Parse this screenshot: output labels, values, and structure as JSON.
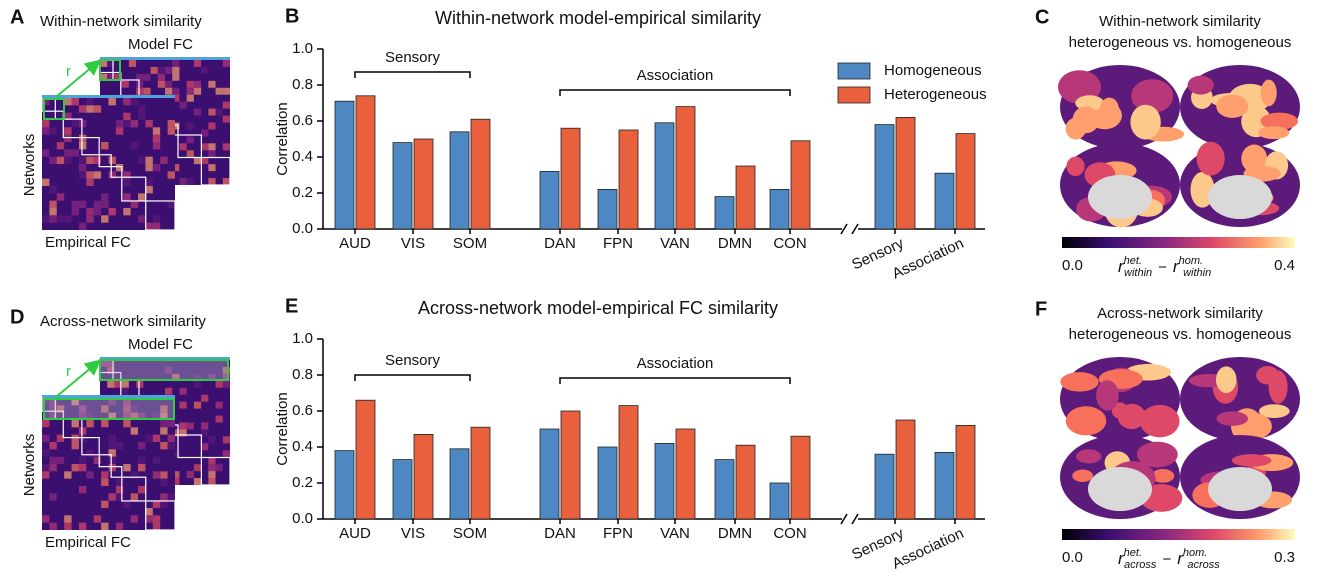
{
  "panels": {
    "A": {
      "letter": "A",
      "title": "Within-network similarity",
      "model": "Model FC",
      "empirical": "Empirical FC",
      "networks": "Networks",
      "r": "r"
    },
    "D": {
      "letter": "D",
      "title": "Across-network similarity",
      "model": "Model FC",
      "empirical": "Empirical FC",
      "networks": "Networks",
      "r": "r"
    },
    "C": {
      "letter": "C",
      "title": [
        "Within-network similarity",
        "heterogeneous vs. homogeneous"
      ],
      "cmin": "0.0",
      "cmax": "0.4",
      "r": "r",
      "sup_het": "het.",
      "sup_hom": "hom.",
      "sub": "within",
      "minus": "−"
    },
    "F": {
      "letter": "F",
      "title": [
        "Across-network similarity",
        "heterogeneous vs. homogeneous"
      ],
      "cmin": "0.0",
      "cmax": "0.3",
      "r": "r",
      "sup_het": "het.",
      "sup_hom": "hom.",
      "sub": "across",
      "minus": "−"
    }
  },
  "chart_data": [
    {
      "type": "bar",
      "letter": "B",
      "title": "Within-network model-empirical similarity",
      "ylabel": "Correlation",
      "categories": [
        "AUD",
        "VIS",
        "SOM",
        "DAN",
        "FPN",
        "VAN",
        "DMN",
        "CON",
        "Sensory",
        "Association"
      ],
      "series": [
        {
          "name": "Homogeneous",
          "color": "#4d88c2",
          "values": [
            0.71,
            0.48,
            0.54,
            0.32,
            0.22,
            0.59,
            0.18,
            0.22,
            0.58,
            0.31
          ]
        },
        {
          "name": "Heterogeneous",
          "color": "#e8603c",
          "values": [
            0.74,
            0.5,
            0.61,
            0.56,
            0.55,
            0.68,
            0.35,
            0.49,
            0.62,
            0.53
          ]
        }
      ],
      "ylim": [
        0,
        1
      ],
      "yticks": [
        {
          "value": 0,
          "label": "0.0"
        },
        0.2,
        0.4,
        0.6,
        0.8,
        {
          "value": 1,
          "label": "1.0"
        }
      ],
      "legend": "upper right",
      "annotations": [
        "Sensory",
        "Association"
      ]
    },
    {
      "type": "bar",
      "letter": "E",
      "title": "Across-network model-empirical FC similarity",
      "ylabel": "Correlation",
      "categories": [
        "AUD",
        "VIS",
        "SOM",
        "DAN",
        "FPN",
        "VAN",
        "DMN",
        "CON",
        "Sensory",
        "Association"
      ],
      "series": [
        {
          "color": "#4d88c2",
          "values": [
            0.38,
            0.33,
            0.39,
            0.5,
            0.4,
            0.42,
            0.33,
            0.2,
            0.36,
            0.37
          ]
        },
        {
          "color": "#e8603c",
          "values": [
            0.66,
            0.47,
            0.51,
            0.6,
            0.63,
            0.5,
            0.41,
            0.46,
            0.55,
            0.52
          ]
        }
      ],
      "ylim": [
        0,
        1
      ],
      "yticks": [
        {
          "value": 0,
          "label": "0.0"
        },
        0.2,
        0.4,
        0.6,
        0.8,
        {
          "value": 1,
          "label": "1.0"
        }
      ],
      "annotations": [
        "Sensory",
        "Association"
      ]
    }
  ]
}
